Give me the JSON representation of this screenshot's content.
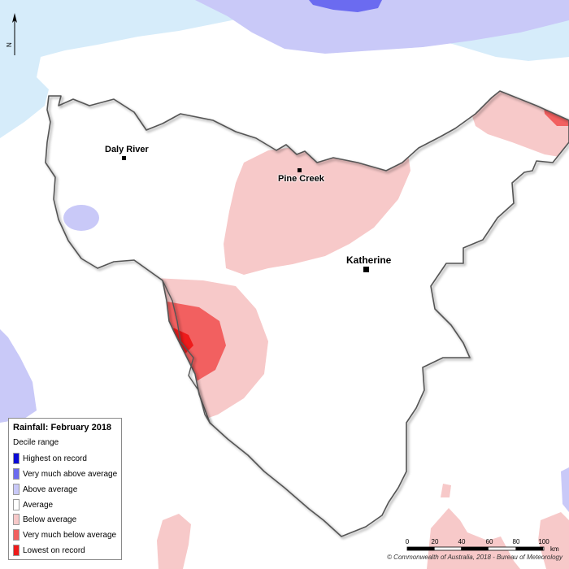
{
  "map": {
    "title": "Rainfall: February 2018",
    "legend": {
      "subtitle": "Decile range",
      "items": [
        {
          "label": "Highest on record",
          "color": "#0a0ad6"
        },
        {
          "label": "Very much above average",
          "color": "#6b6bf0"
        },
        {
          "label": "Above average",
          "color": "#c9c9f8"
        },
        {
          "label": "Average",
          "color": "#ffffff"
        },
        {
          "label": "Below average",
          "color": "#f7c9c9"
        },
        {
          "label": "Very much below average",
          "color": "#f26060"
        },
        {
          "label": "Lowest on record",
          "color": "#ee1b1b"
        }
      ]
    },
    "places": {
      "daly_river": "Daly River",
      "pine_creek": "Pine Creek",
      "katherine": "Katherine"
    },
    "north_label": "N",
    "scale": {
      "ticks": [
        "0",
        "20",
        "40",
        "60",
        "80",
        "100"
      ],
      "unit": "km"
    },
    "copyright": "© Commonwealth of Australia, 2018 - Bureau of Meteorology",
    "colors": {
      "ocean": "#d6ecfa",
      "outside_region": "#ffffff",
      "region_border": "#555555"
    }
  }
}
